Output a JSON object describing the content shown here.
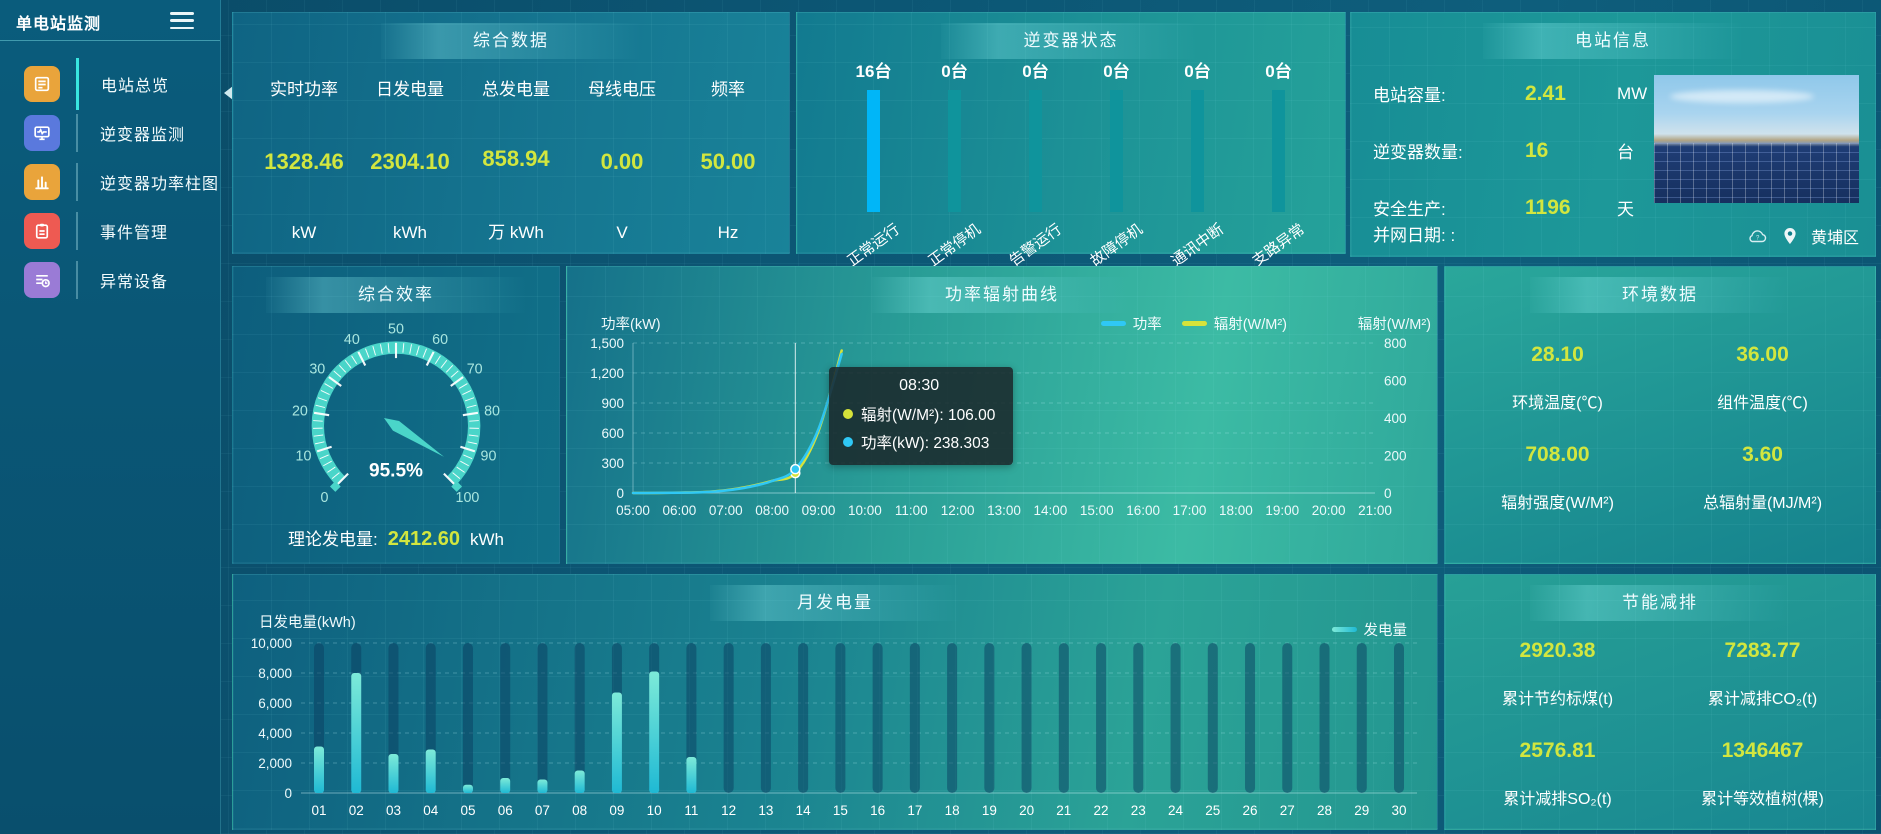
{
  "sidebar": {
    "title": "单电站监测",
    "items": [
      {
        "label": "电站总览",
        "icon": "station-overview",
        "color": "#e9a43b",
        "active": true
      },
      {
        "label": "逆变器监测",
        "icon": "inverter-monitor",
        "color": "#5a79dd",
        "active": false
      },
      {
        "label": "逆变器功率柱图",
        "icon": "inverter-power-bars",
        "color": "#e9a43b",
        "active": false
      },
      {
        "label": "事件管理",
        "icon": "event-management",
        "color": "#ee5a52",
        "active": false
      },
      {
        "label": "异常设备",
        "icon": "abnormal-devices",
        "color": "#9a7bd6",
        "active": false
      }
    ]
  },
  "panels": {
    "summary": {
      "title": "综合数据",
      "metrics": [
        {
          "label": "实时功率",
          "value": "1328.46",
          "unit": "kW"
        },
        {
          "label": "日发电量",
          "value": "2304.10",
          "unit": "kWh"
        },
        {
          "label": "总发电量",
          "value": "858.94",
          "unit": "万 kWh"
        },
        {
          "label": "母线电压",
          "value": "0.00",
          "unit": "V"
        },
        {
          "label": "频率",
          "value": "50.00",
          "unit": "Hz"
        }
      ]
    },
    "inverter_status": {
      "title": "逆变器状态",
      "bars": [
        {
          "count": "16台",
          "label": "正常运行",
          "highlight": true
        },
        {
          "count": "0台",
          "label": "正常停机",
          "highlight": false
        },
        {
          "count": "0台",
          "label": "告警运行",
          "highlight": false
        },
        {
          "count": "0台",
          "label": "故障停机",
          "highlight": false
        },
        {
          "count": "0台",
          "label": "通讯中断",
          "highlight": false
        },
        {
          "count": "0台",
          "label": "支路异常",
          "highlight": false
        }
      ]
    },
    "station_info": {
      "title": "电站信息",
      "rows": [
        {
          "label": "电站容量:",
          "value": "2.41",
          "unit": "MW"
        },
        {
          "label": "逆变器数量:",
          "value": "16",
          "unit": "台"
        },
        {
          "label": "安全生产:",
          "value": "1196",
          "unit": "天"
        }
      ],
      "grid_date_label": "并网日期: :",
      "location": "黄埔区"
    },
    "efficiency": {
      "title": "综合效率",
      "gauge_display": "95.5%",
      "footer_label": "理论发电量:",
      "footer_value": "2412.60",
      "footer_unit": "kWh"
    },
    "power_curve": {
      "title": "功率辐射曲线",
      "tooltip": {
        "time": "08:30",
        "rows": [
          {
            "dot": "#d6e33a",
            "text": "辐射(W/M²): 106.00"
          },
          {
            "dot": "#2fc8f5",
            "text": "功率(kW): 238.303"
          }
        ]
      }
    },
    "environment": {
      "title": "环境数据",
      "metrics": [
        {
          "value": "28.10",
          "label": "环境温度(℃)"
        },
        {
          "value": "36.00",
          "label": "组件温度(℃)"
        },
        {
          "value": "708.00",
          "label": "辐射强度(W/M²)"
        },
        {
          "value": "3.60",
          "label": "总辐射量(MJ/M²)"
        }
      ]
    },
    "monthly": {
      "title": "月发电量"
    },
    "savings": {
      "title": "节能减排",
      "metrics": [
        {
          "value": "2920.38",
          "label": "累计节约标煤(t)"
        },
        {
          "value": "7283.77",
          "label": "累计减排CO₂(t)"
        },
        {
          "value": "2576.81",
          "label": "累计减排SO₂(t)"
        },
        {
          "value": "1346467",
          "label": "累计等效植树(棵)"
        }
      ]
    }
  },
  "colors": {
    "accent_yellow": "#d2e63f",
    "highlight_blue": "#00b6f8",
    "teal_bar": "#0f949c",
    "gauge_teal": "#4ad5c9"
  },
  "chart_data": [
    {
      "type": "gauge",
      "title": "综合效率",
      "min": 0,
      "max": 100,
      "value": 95.5,
      "display": "95.5%",
      "tick_labels": [
        0,
        10,
        20,
        30,
        40,
        50,
        60,
        70,
        80,
        90,
        100
      ],
      "color": "#4ad5c9"
    },
    {
      "type": "line",
      "title": "功率辐射曲线",
      "x_ticks": [
        "05:00",
        "06:00",
        "07:00",
        "08:00",
        "09:00",
        "10:00",
        "11:00",
        "12:00",
        "13:00",
        "14:00",
        "15:00",
        "16:00",
        "17:00",
        "18:00",
        "19:00",
        "20:00",
        "21:00"
      ],
      "left_axis": {
        "name": "功率(kW)",
        "min": 0,
        "max": 1500,
        "ticks": [
          "1,500",
          "1,200",
          "900",
          "600",
          "300",
          "0"
        ]
      },
      "right_axis": {
        "name": "辐射(W/M²)",
        "min": 0,
        "max": 800,
        "ticks": [
          "800",
          "600",
          "400",
          "200",
          "0"
        ]
      },
      "grid": true,
      "legend_position": "top-right",
      "hover_x": "08:30",
      "series": [
        {
          "name": "辐射(W/M²)",
          "axis": "right",
          "color": "#d6e33a",
          "points": [
            [
              "05:00",
              0
            ],
            [
              "05:30",
              0
            ],
            [
              "06:00",
              2
            ],
            [
              "06:30",
              5
            ],
            [
              "07:00",
              15
            ],
            [
              "07:30",
              35
            ],
            [
              "08:00",
              65
            ],
            [
              "08:30",
              106
            ],
            [
              "09:00",
              330
            ],
            [
              "09:30",
              760
            ]
          ]
        },
        {
          "name": "功率",
          "axis": "left",
          "color": "#2fc8f5",
          "points": [
            [
              "05:00",
              0
            ],
            [
              "05:30",
              1
            ],
            [
              "06:00",
              3
            ],
            [
              "06:30",
              8
            ],
            [
              "07:00",
              25
            ],
            [
              "07:30",
              60
            ],
            [
              "08:00",
              120
            ],
            [
              "08:30",
              238.303
            ],
            [
              "09:00",
              640
            ],
            [
              "09:30",
              1390
            ]
          ]
        }
      ]
    },
    {
      "type": "bar",
      "title": "月发电量",
      "ylabel": "日发电量(kWh)",
      "legend": [
        "发电量"
      ],
      "categories": [
        "01",
        "02",
        "03",
        "04",
        "05",
        "06",
        "07",
        "08",
        "09",
        "10",
        "11",
        "12",
        "13",
        "14",
        "15",
        "16",
        "17",
        "18",
        "19",
        "20",
        "21",
        "22",
        "23",
        "24",
        "25",
        "26",
        "27",
        "28",
        "29",
        "30"
      ],
      "values": [
        3100,
        8000,
        2600,
        2900,
        550,
        1000,
        900,
        1500,
        6700,
        8100,
        2400,
        0,
        0,
        0,
        0,
        0,
        0,
        0,
        0,
        0,
        0,
        0,
        0,
        0,
        0,
        0,
        0,
        0,
        0,
        0
      ],
      "ylim": [
        0,
        10000
      ],
      "yticks": [
        "10,000",
        "8,000",
        "6,000",
        "4,000",
        "2,000",
        "0"
      ],
      "bar_gradient": [
        "#7dead8",
        "#1fb9d4"
      ],
      "track_color": "rgba(9,62,96,0.5)"
    },
    {
      "type": "bar",
      "title": "逆变器状态",
      "categories": [
        "正常运行",
        "正常停机",
        "告警运行",
        "故障停机",
        "通讯中断",
        "支路异常"
      ],
      "values": [
        16,
        0,
        0,
        0,
        0,
        0
      ],
      "unit": "台"
    }
  ]
}
